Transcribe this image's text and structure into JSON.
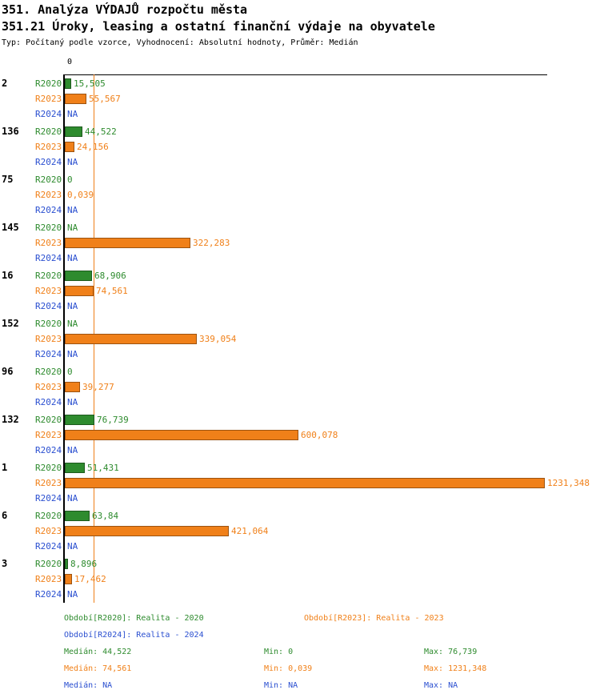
{
  "chart_data": {
    "type": "bar",
    "orientation": "horizontal",
    "title": "351. Analýza VÝDAJŮ rozpočtu města",
    "subtitle": "351.21 Úroky, leasing a ostatní finanční výdaje na obyvatele",
    "note": "Typ: Počítaný podle vzorce, Vyhodnocení: Absolutní hodnoty, Průměr: Medián",
    "x_axis": {
      "zero_label": "0",
      "min": 0,
      "max": 1231.348
    },
    "median_line": {
      "series": "R2023",
      "value": 74.561
    },
    "series": [
      "R2020",
      "R2023",
      "R2024"
    ],
    "groups": [
      {
        "label": "2",
        "rows": [
          {
            "series": "R2020",
            "display": "15,505",
            "value": 15.505
          },
          {
            "series": "R2023",
            "display": "55,567",
            "value": 55.567
          },
          {
            "series": "R2024",
            "display": "NA",
            "value": null
          }
        ]
      },
      {
        "label": "136",
        "rows": [
          {
            "series": "R2020",
            "display": "44,522",
            "value": 44.522
          },
          {
            "series": "R2023",
            "display": "24,156",
            "value": 24.156
          },
          {
            "series": "R2024",
            "display": "NA",
            "value": null
          }
        ]
      },
      {
        "label": "75",
        "rows": [
          {
            "series": "R2020",
            "display": "0",
            "value": 0
          },
          {
            "series": "R2023",
            "display": "0,039",
            "value": 0.039
          },
          {
            "series": "R2024",
            "display": "NA",
            "value": null
          }
        ]
      },
      {
        "label": "145",
        "rows": [
          {
            "series": "R2020",
            "display": "NA",
            "value": null
          },
          {
            "series": "R2023",
            "display": "322,283",
            "value": 322.283
          },
          {
            "series": "R2024",
            "display": "NA",
            "value": null
          }
        ]
      },
      {
        "label": "16",
        "rows": [
          {
            "series": "R2020",
            "display": "68,906",
            "value": 68.906
          },
          {
            "series": "R2023",
            "display": "74,561",
            "value": 74.561
          },
          {
            "series": "R2024",
            "display": "NA",
            "value": null
          }
        ]
      },
      {
        "label": "152",
        "rows": [
          {
            "series": "R2020",
            "display": "NA",
            "value": null
          },
          {
            "series": "R2023",
            "display": "339,054",
            "value": 339.054
          },
          {
            "series": "R2024",
            "display": "NA",
            "value": null
          }
        ]
      },
      {
        "label": "96",
        "rows": [
          {
            "series": "R2020",
            "display": "0",
            "value": 0
          },
          {
            "series": "R2023",
            "display": "39,277",
            "value": 39.277
          },
          {
            "series": "R2024",
            "display": "NA",
            "value": null
          }
        ]
      },
      {
        "label": "132",
        "rows": [
          {
            "series": "R2020",
            "display": "76,739",
            "value": 76.739
          },
          {
            "series": "R2023",
            "display": "600,078",
            "value": 600.078
          },
          {
            "series": "R2024",
            "display": "NA",
            "value": null
          }
        ]
      },
      {
        "label": "1",
        "rows": [
          {
            "series": "R2020",
            "display": "51,431",
            "value": 51.431
          },
          {
            "series": "R2023",
            "display": "1231,348",
            "value": 1231.348
          },
          {
            "series": "R2024",
            "display": "NA",
            "value": null
          }
        ]
      },
      {
        "label": "6",
        "rows": [
          {
            "series": "R2020",
            "display": "63,84",
            "value": 63.84
          },
          {
            "series": "R2023",
            "display": "421,064",
            "value": 421.064
          },
          {
            "series": "R2024",
            "display": "NA",
            "value": null
          }
        ]
      },
      {
        "label": "3",
        "rows": [
          {
            "series": "R2020",
            "display": "8,896",
            "value": 8.896
          },
          {
            "series": "R2023",
            "display": "17,462",
            "value": 17.462
          },
          {
            "series": "R2024",
            "display": "NA",
            "value": null
          }
        ]
      }
    ]
  },
  "colors": {
    "r2020": "#2e8b2e",
    "r2023": "#f08019",
    "r2024": "#2a4fd0",
    "axis": "#000000"
  },
  "legend": {
    "r2020": "Období[R2020]: Realita - 2020",
    "r2023": "Období[R2023]: Realita - 2023",
    "r2024": "Období[R2024]: Realita - 2024"
  },
  "stats": {
    "r2020": {
      "median": "Medián: 44,522",
      "min": "Min: 0",
      "max": "Max: 76,739"
    },
    "r2023": {
      "median": "Medián: 74,561",
      "min": "Min: 0,039",
      "max": "Max: 1231,348"
    },
    "r2024": {
      "median": "Medián: NA",
      "min": "Min: NA",
      "max": "Max: NA"
    }
  }
}
